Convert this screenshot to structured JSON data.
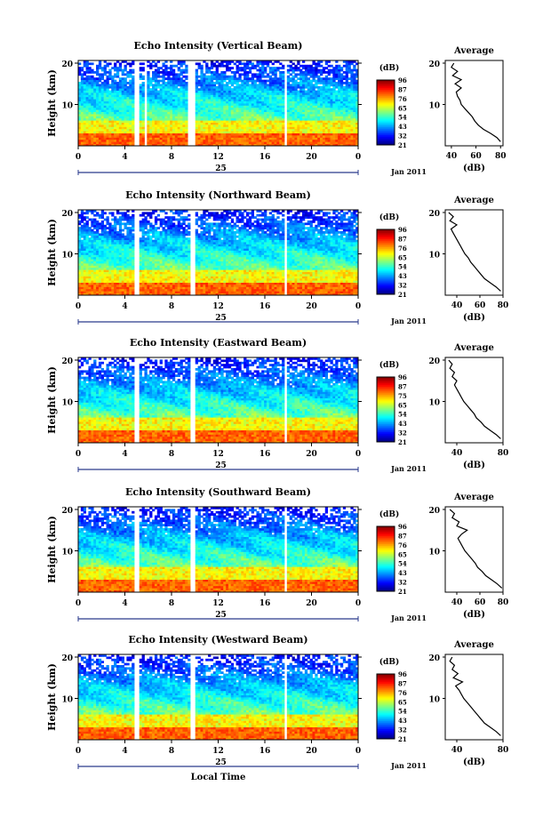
{
  "chart_data": [
    {
      "type": "heatmap",
      "title": "Echo Intensity (Vertical Beam)",
      "ylabel": "Height (km)",
      "xticks": [
        "0",
        "4",
        "8",
        "12",
        "16",
        "20",
        "0"
      ],
      "yticks": [
        "10",
        "20"
      ],
      "date_day": "25",
      "date_label": "Jan 2011",
      "colorbar_unit": "(dB)",
      "colorbar_ticks": [
        "96",
        "87",
        "76",
        "65",
        "54",
        "43",
        "32",
        "21"
      ],
      "gaps_hours": [
        [
          4.8,
          5.3
        ],
        [
          5.6,
          5.8
        ],
        [
          9.4,
          10.0
        ],
        [
          17.6,
          17.9
        ]
      ],
      "profile": {
        "title": "Average",
        "xlabel": "(dB)",
        "xticks": [
          "40",
          "60",
          "80"
        ],
        "xlim": [
          35,
          82
        ],
        "yticks": [
          "10",
          "20"
        ],
        "height_km": [
          1,
          2,
          3,
          4,
          5,
          6,
          7,
          8,
          9,
          10,
          11,
          12,
          13,
          14,
          15,
          16,
          17,
          18,
          19,
          20
        ],
        "db": [
          80,
          77,
          72,
          66,
          62,
          59,
          57,
          54,
          51,
          48,
          47,
          45,
          44,
          48,
          43,
          48,
          41,
          45,
          40,
          42
        ]
      }
    },
    {
      "type": "heatmap",
      "title": "Echo Intensity (Northward Beam)",
      "ylabel": "Height (km)",
      "xticks": [
        "0",
        "4",
        "8",
        "12",
        "16",
        "20",
        "0"
      ],
      "yticks": [
        "10",
        "20"
      ],
      "date_day": "25",
      "date_label": "Jan 2011",
      "colorbar_unit": "(dB)",
      "colorbar_ticks": [
        "96",
        "87",
        "76",
        "65",
        "54",
        "43",
        "32",
        "21"
      ],
      "gaps_hours": [
        [
          4.8,
          5.3
        ],
        [
          9.6,
          10.0
        ],
        [
          17.6,
          17.9
        ]
      ],
      "profile": {
        "title": "Average",
        "xlabel": "(dB)",
        "xticks": [
          "40",
          "60",
          "80"
        ],
        "xlim": [
          30,
          80
        ],
        "yticks": [
          "10",
          "20"
        ],
        "height_km": [
          1,
          2,
          3,
          4,
          5,
          6,
          7,
          8,
          9,
          10,
          11,
          12,
          13,
          14,
          15,
          16,
          17,
          18,
          19,
          20
        ],
        "db": [
          78,
          74,
          69,
          64,
          61,
          58,
          55,
          52,
          50,
          47,
          45,
          43,
          41,
          39,
          37,
          35,
          40,
          34,
          37,
          33
        ]
      }
    },
    {
      "type": "heatmap",
      "title": "Echo Intensity (Eastward Beam)",
      "ylabel": "Height (km)",
      "xticks": [
        "0",
        "4",
        "8",
        "12",
        "16",
        "20",
        "0"
      ],
      "yticks": [
        "10",
        "20"
      ],
      "date_day": "25",
      "date_label": "Jan 2011",
      "colorbar_unit": "(dB)",
      "colorbar_ticks": [
        "96",
        "87",
        "75",
        "65",
        "54",
        "43",
        "32",
        "21"
      ],
      "gaps_hours": [
        [
          4.8,
          5.3
        ],
        [
          9.6,
          10.0
        ],
        [
          17.6,
          17.9
        ]
      ],
      "profile": {
        "title": "Average",
        "xlabel": "(dB)",
        "xticks": [
          "40",
          "80"
        ],
        "xlim": [
          30,
          80
        ],
        "yticks": [
          "10",
          "20"
        ],
        "height_km": [
          1,
          2,
          3,
          4,
          5,
          6,
          7,
          8,
          9,
          10,
          11,
          12,
          13,
          14,
          15,
          16,
          17,
          18,
          19,
          20
        ],
        "db": [
          78,
          74,
          69,
          64,
          61,
          57,
          55,
          52,
          49,
          46,
          44,
          42,
          40,
          38,
          40,
          36,
          38,
          34,
          36,
          33
        ]
      }
    },
    {
      "type": "heatmap",
      "title": "Echo Intensity (Southward Beam)",
      "ylabel": "Height (km)",
      "xticks": [
        "0",
        "4",
        "8",
        "12",
        "16",
        "20",
        "0"
      ],
      "yticks": [
        "10",
        "20"
      ],
      "date_day": "25",
      "date_label": "Jan 2011",
      "colorbar_unit": "(dB)",
      "colorbar_ticks": [
        "96",
        "87",
        "76",
        "65",
        "54",
        "43",
        "32",
        "21"
      ],
      "gaps_hours": [
        [
          4.8,
          5.3
        ],
        [
          9.6,
          10.0
        ],
        [
          17.6,
          17.9
        ]
      ],
      "profile": {
        "title": "Average",
        "xlabel": "(dB)",
        "xticks": [
          "40",
          "60",
          "80"
        ],
        "xlim": [
          30,
          80
        ],
        "yticks": [
          "10",
          "20"
        ],
        "height_km": [
          1,
          2,
          3,
          4,
          5,
          6,
          7,
          8,
          9,
          10,
          11,
          12,
          13,
          14,
          15,
          16,
          17,
          18,
          19,
          20
        ],
        "db": [
          79,
          75,
          70,
          65,
          62,
          58,
          56,
          53,
          50,
          47,
          45,
          43,
          41,
          44,
          49,
          40,
          42,
          36,
          38,
          34
        ]
      }
    },
    {
      "type": "heatmap",
      "title": "Echo Intensity (Westward Beam)",
      "ylabel": "Height (km)",
      "xticks": [
        "0",
        "4",
        "8",
        "12",
        "16",
        "20",
        "0"
      ],
      "yticks": [
        "10",
        "20"
      ],
      "date_day": "25",
      "date_label": "Jan 2011",
      "xlabel": "Local Time",
      "colorbar_unit": "(dB)",
      "colorbar_ticks": [
        "96",
        "87",
        "76",
        "65",
        "54",
        "43",
        "32",
        "21"
      ],
      "gaps_hours": [
        [
          4.8,
          5.3
        ],
        [
          9.6,
          10.0
        ],
        [
          17.6,
          17.9
        ]
      ],
      "profile": {
        "title": "Average",
        "xlabel": "(dB)",
        "xticks": [
          "40",
          "80"
        ],
        "xlim": [
          30,
          80
        ],
        "yticks": [
          "10",
          "20"
        ],
        "height_km": [
          1,
          2,
          3,
          4,
          5,
          6,
          7,
          8,
          9,
          10,
          11,
          12,
          13,
          14,
          15,
          16,
          17,
          18,
          19,
          20
        ],
        "db": [
          78,
          74,
          69,
          64,
          61,
          58,
          55,
          52,
          49,
          46,
          44,
          42,
          39,
          45,
          37,
          41,
          36,
          38,
          34,
          36
        ]
      }
    }
  ]
}
